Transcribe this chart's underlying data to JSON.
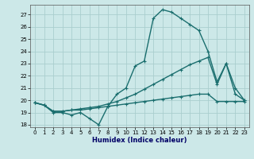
{
  "xlabel": "Humidex (Indice chaleur)",
  "bg_color": "#cce8e8",
  "line_color": "#1a6e6e",
  "grid_color": "#aacece",
  "xlim": [
    -0.5,
    23.5
  ],
  "ylim": [
    17.8,
    27.8
  ],
  "yticks": [
    18,
    19,
    20,
    21,
    22,
    23,
    24,
    25,
    26,
    27
  ],
  "xticks": [
    0,
    1,
    2,
    3,
    4,
    5,
    6,
    7,
    8,
    9,
    10,
    11,
    12,
    13,
    14,
    15,
    16,
    17,
    18,
    19,
    20,
    21,
    22,
    23
  ],
  "line1_y": [
    19.8,
    19.6,
    19.0,
    19.0,
    18.8,
    19.0,
    18.5,
    18.0,
    19.5,
    20.5,
    21.0,
    22.8,
    23.2,
    26.7,
    27.4,
    27.2,
    26.7,
    26.2,
    25.7,
    24.0,
    21.5,
    23.0,
    20.5,
    20.0
  ],
  "line2_y": [
    19.8,
    19.6,
    19.1,
    19.1,
    19.2,
    19.3,
    19.4,
    19.5,
    19.7,
    19.9,
    20.2,
    20.5,
    20.9,
    21.3,
    21.7,
    22.1,
    22.5,
    22.9,
    23.2,
    23.5,
    21.3,
    23.0,
    21.0,
    20.0
  ],
  "line3_y": [
    19.8,
    19.6,
    19.1,
    19.1,
    19.2,
    19.2,
    19.3,
    19.4,
    19.5,
    19.6,
    19.7,
    19.8,
    19.9,
    20.0,
    20.1,
    20.2,
    20.3,
    20.4,
    20.5,
    20.5,
    19.9,
    19.9,
    19.9,
    19.9
  ],
  "marker": "+",
  "markersize": 3,
  "linewidth": 1.0
}
